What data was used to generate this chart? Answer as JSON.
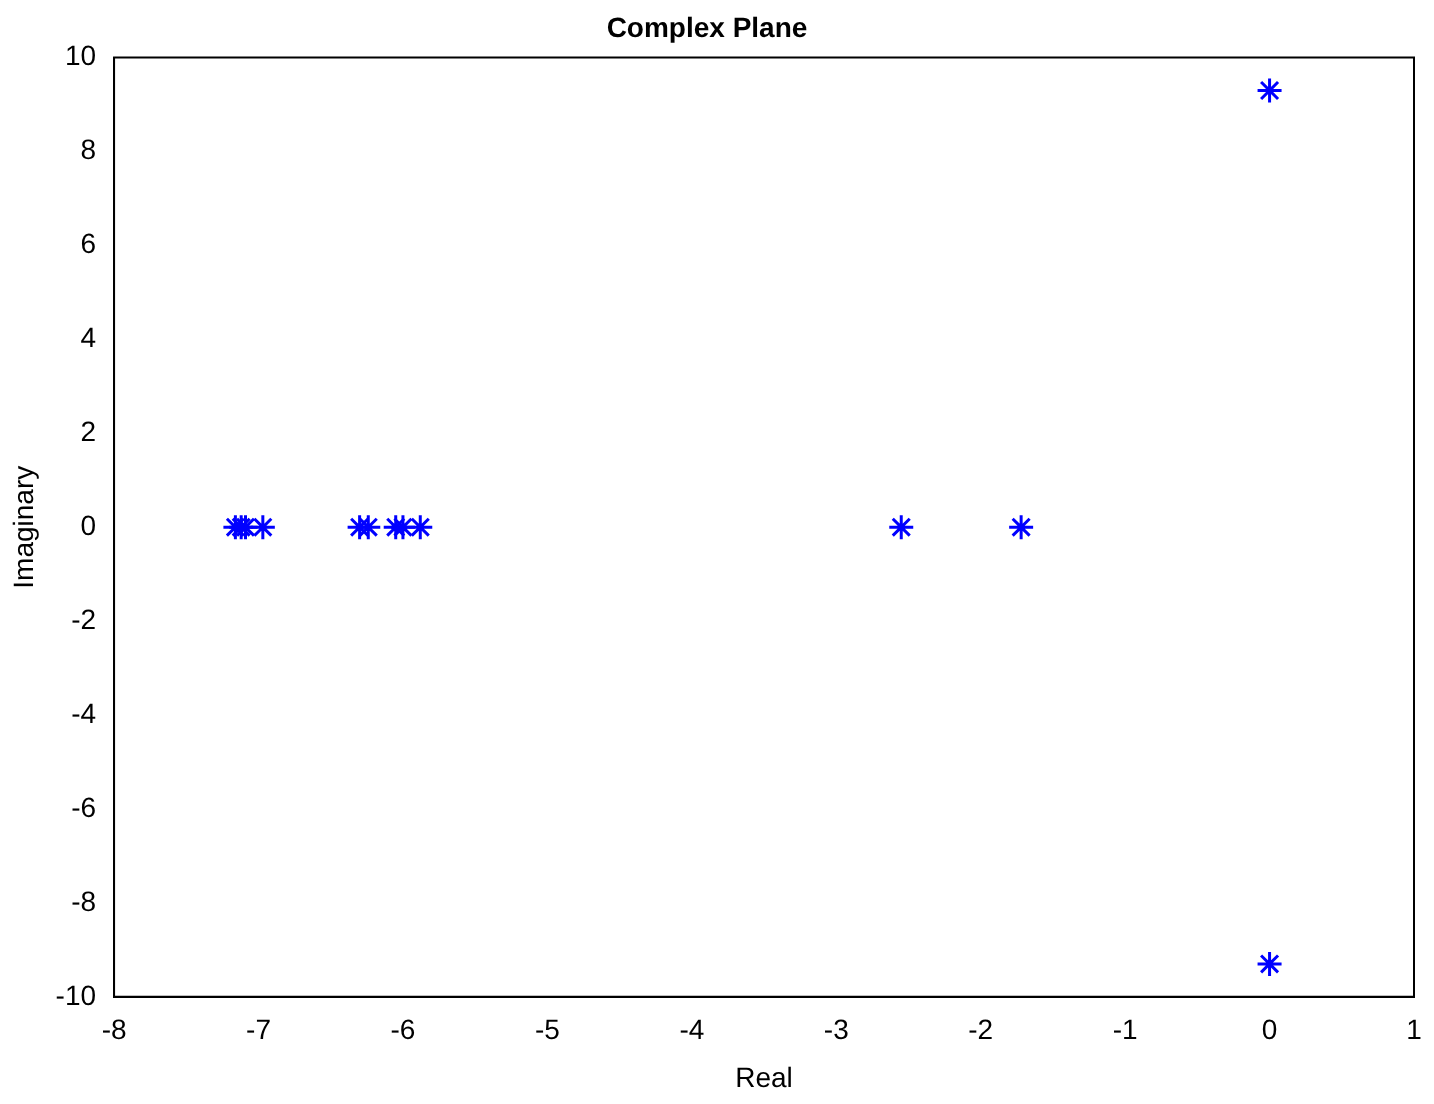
{
  "chart_data": {
    "type": "scatter",
    "title": "Complex Plane",
    "xlabel": "Real",
    "ylabel": "Imaginary",
    "x": [
      -7.16,
      -7.12,
      -7.09,
      -6.97,
      -6.3,
      -6.24,
      -6.05,
      -6.0,
      -5.88,
      -2.55,
      -1.72,
      0,
      0
    ],
    "values": [
      0,
      0,
      0,
      0,
      0,
      0,
      0,
      0,
      0,
      0,
      0,
      9.3,
      -9.3
    ],
    "color": "#0000ff",
    "marker": "cross",
    "xlim": [
      -8,
      1
    ],
    "xticks": [
      -8,
      -7,
      -6,
      -5,
      -4,
      -3,
      -2,
      -1,
      0,
      1
    ],
    "ylim": [
      -10,
      10
    ],
    "yticks": [
      -10,
      -8,
      -6,
      -4,
      -2,
      0,
      2,
      4,
      6,
      8,
      10
    ],
    "grid": false,
    "legend": false
  }
}
